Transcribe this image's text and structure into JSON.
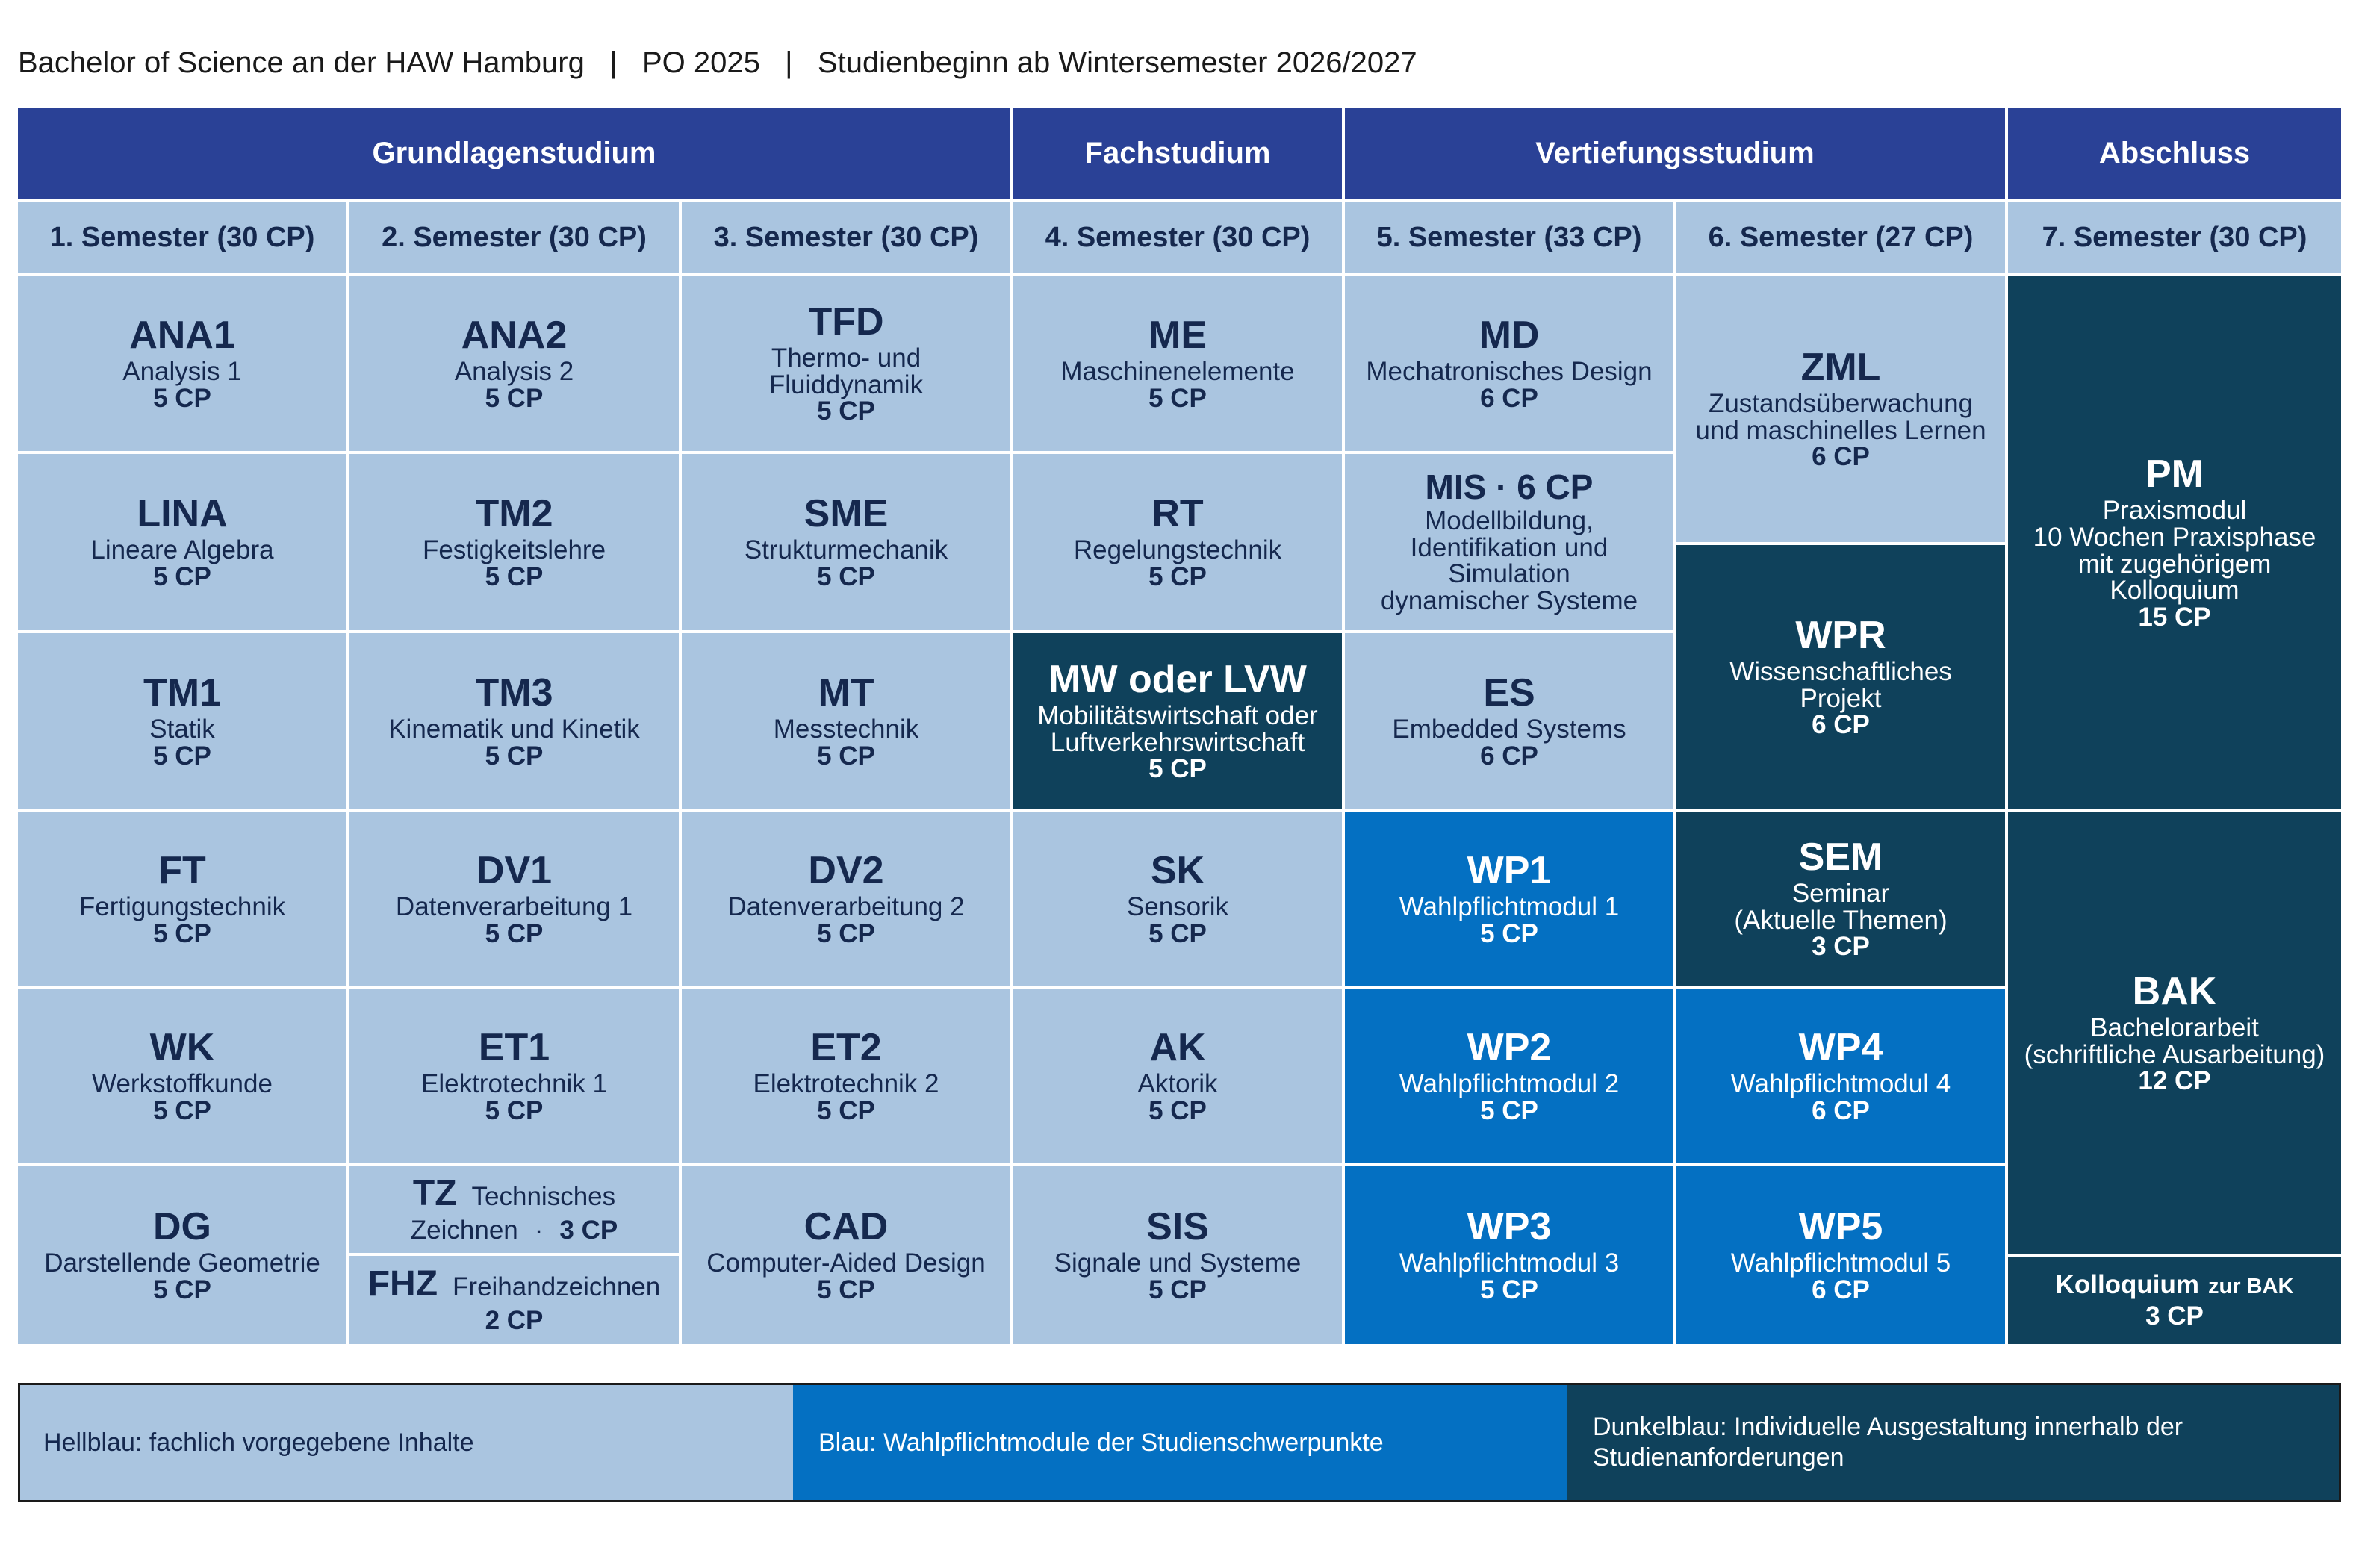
{
  "header": {
    "title": "Bachelor of Science an der HAW Hamburg   |   PO 2025   |   Studienbeginn ab Wintersemester 2026/2027"
  },
  "phases": [
    "Grundlagenstudium",
    "Fachstudium",
    "Vertiefungsstudium",
    "Abschluss"
  ],
  "semesters": [
    "1. Semester (30 CP)",
    "2. Semester (30 CP)",
    "3. Semester (30 CP)",
    "4. Semester (30 CP)",
    "5. Semester (33 CP)",
    "6. Semester (27 CP)",
    "7. Semester (30 CP)"
  ],
  "modules": {
    "ana1": {
      "code": "ANA1",
      "name": "Analysis 1",
      "cp": "5 CP"
    },
    "lina": {
      "code": "LINA",
      "name": "Lineare Algebra",
      "cp": "5 CP"
    },
    "tm1": {
      "code": "TM1",
      "name": "Statik",
      "cp": "5 CP"
    },
    "ft": {
      "code": "FT",
      "name": "Fertigungstechnik",
      "cp": "5 CP"
    },
    "wk": {
      "code": "WK",
      "name": "Werkstoffkunde",
      "cp": "5 CP"
    },
    "dg": {
      "code": "DG",
      "name": "Darstellende Geometrie",
      "cp": "5 CP"
    },
    "ana2": {
      "code": "ANA2",
      "name": "Analysis 2",
      "cp": "5 CP"
    },
    "tm2": {
      "code": "TM2",
      "name": "Festigkeitslehre",
      "cp": "5 CP"
    },
    "tm3": {
      "code": "TM3",
      "name": "Kinematik und Kinetik",
      "cp": "5 CP"
    },
    "dv1": {
      "code": "DV1",
      "name": "Datenverarbeitung 1",
      "cp": "5 CP"
    },
    "et1": {
      "code": "ET1",
      "name": "Elektrotechnik 1",
      "cp": "5 CP"
    },
    "tz": {
      "code": "TZ",
      "name_a": "Technisches",
      "name_b": "Zeichnen",
      "sep": "·",
      "cp": "3 CP"
    },
    "fhz": {
      "code": "FHZ",
      "name": "Freihandzeichnen",
      "cp": "2 CP"
    },
    "tfd": {
      "code": "TFD",
      "name_a": "Thermo- und",
      "name_b": "Fluiddynamik",
      "cp": "5 CP"
    },
    "sme": {
      "code": "SME",
      "name": "Strukturmechanik",
      "cp": "5 CP"
    },
    "mt": {
      "code": "MT",
      "name": "Messtechnik",
      "cp": "5 CP"
    },
    "dv2": {
      "code": "DV2",
      "name": "Datenverarbeitung 2",
      "cp": "5 CP"
    },
    "et2": {
      "code": "ET2",
      "name": "Elektrotechnik 2",
      "cp": "5 CP"
    },
    "cad": {
      "code": "CAD",
      "name": "Computer-Aided Design",
      "cp": "5 CP"
    },
    "me": {
      "code": "ME",
      "name": "Maschinenelemente",
      "cp": "5 CP"
    },
    "rt": {
      "code": "RT",
      "name": "Regelungstechnik",
      "cp": "5 CP"
    },
    "mw": {
      "code": "MW oder LVW",
      "name_a": "Mobilitätswirtschaft oder",
      "name_b": "Luftverkehrswirtschaft",
      "cp": "5 CP"
    },
    "sk": {
      "code": "SK",
      "name": "Sensorik",
      "cp": "5 CP"
    },
    "ak": {
      "code": "AK",
      "name": "Aktorik",
      "cp": "5 CP"
    },
    "sis": {
      "code": "SIS",
      "name": "Signale und Systeme",
      "cp": "5 CP"
    },
    "md": {
      "code": "MD",
      "name": "Mechatronisches Design",
      "cp": "6 CP"
    },
    "mis": {
      "code": "MIS · 6 CP",
      "name_a": "Modellbildung,",
      "name_b": "Identifikation und",
      "name_c": "Simulation",
      "name_d": "dynamischer Systeme"
    },
    "es": {
      "code": "ES",
      "name": "Embedded Systems",
      "cp": "6 CP"
    },
    "wp1": {
      "code": "WP1",
      "name": "Wahlpflichtmodul 1",
      "cp": "5 CP"
    },
    "wp2": {
      "code": "WP2",
      "name": "Wahlpflichtmodul 2",
      "cp": "5 CP"
    },
    "wp3": {
      "code": "WP3",
      "name": "Wahlpflichtmodul 3",
      "cp": "5 CP"
    },
    "zml": {
      "code": "ZML",
      "name_a": "Zustandsüberwachung",
      "name_b": "und maschinelles Lernen",
      "cp": "6 CP"
    },
    "wpr": {
      "code": "WPR",
      "name_a": "Wissenschaftliches",
      "name_b": "Projekt",
      "cp": "6 CP"
    },
    "sem": {
      "code": "SEM",
      "name_a": "Seminar",
      "name_b": "(Aktuelle Themen)",
      "cp": "3 CP"
    },
    "wp4": {
      "code": "WP4",
      "name": "Wahlpflichtmodul 4",
      "cp": "6 CP"
    },
    "wp5": {
      "code": "WP5",
      "name": "Wahlpflichtmodul 5",
      "cp": "6 CP"
    },
    "pm": {
      "code": "PM",
      "name_a": "Praxismodul",
      "name_b": "10 Wochen Praxisphase",
      "name_c": "mit zugehörigem",
      "name_d": "Kolloquium",
      "cp": "15 CP"
    },
    "bak": {
      "code": "BAK",
      "name_a": "Bachelorarbeit",
      "name_b": "(schriftliche Ausarbeitung)",
      "cp": "12 CP"
    },
    "kol": {
      "code": "Kolloquium",
      "suffix": "zur BAK",
      "cp": "3 CP"
    }
  },
  "legend": [
    "Hellblau: fachlich vorgegebene Inhalte",
    "Blau: Wahlpflichtmodule der Studienschwerpunkte",
    "Dunkelblau: Individuelle Ausgestaltung innerhalb der Studienanforderungen"
  ],
  "colors": {
    "light": "#aac5e0",
    "blue": "#0470c2",
    "dark": "#0f415b",
    "header": "#2a4196"
  }
}
